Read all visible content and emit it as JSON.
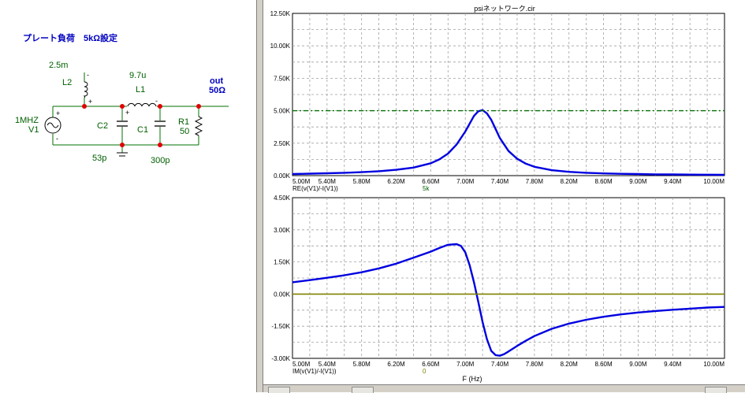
{
  "schematic": {
    "title": "プレート負荷　5kΩ設定",
    "source_name": "V1",
    "source_value": "1MHZ",
    "l2_name": "L2",
    "l2_value": "2.5m",
    "l1_name": "L1",
    "l1_value": "9.7u",
    "c2_name": "C2",
    "c2_value": "53p",
    "c1_name": "C1",
    "c1_value": "300p",
    "r1_name": "R1",
    "r1_value": "50",
    "out_label": "out",
    "out_value": "50Ω",
    "plus": "+",
    "minus": "-"
  },
  "plot": {
    "window_title": "psiネットワーク.cir",
    "xlabel": "F (Hz)"
  },
  "colors": {
    "trace": "#0000e0",
    "ref_dashed": "#007000",
    "zero_line": "#808000",
    "node": "#e00000",
    "wire": "#007000",
    "label_blue": "#0000c0",
    "label_green": "#006000"
  },
  "chart_data": [
    {
      "type": "line",
      "x_ticks": [
        "5.00M",
        "5.40M",
        "5.80M",
        "6.20M",
        "6.60M",
        "7.00M",
        "7.40M",
        "7.80M",
        "8.20M",
        "8.60M",
        "9.00M",
        "9.40M",
        "10.00M"
      ],
      "y_ticks": [
        "12.50K",
        "10.00K",
        "7.50K",
        "5.00K",
        "2.50K",
        "0.00K"
      ],
      "xlim": [
        5.0,
        10.0
      ],
      "ylim": [
        0,
        12.5
      ],
      "ylabel": "RE(v(V1)/-I(V1))",
      "ref_label": "5k",
      "ref_value": 5.0,
      "grid": true,
      "series": [
        {
          "x": [
            5.0,
            5.2,
            5.4,
            5.6,
            5.8,
            6.0,
            6.2,
            6.4,
            6.6,
            6.7,
            6.8,
            6.9,
            7.0,
            7.05,
            7.1,
            7.15,
            7.2,
            7.25,
            7.3,
            7.35,
            7.4,
            7.5,
            7.6,
            7.7,
            7.8,
            8.0,
            8.2,
            8.4,
            8.6,
            8.8,
            9.0,
            9.2,
            9.4,
            9.6,
            9.8,
            10.0
          ],
          "values": [
            0.12,
            0.15,
            0.18,
            0.22,
            0.27,
            0.34,
            0.45,
            0.62,
            0.95,
            1.25,
            1.7,
            2.4,
            3.4,
            4.0,
            4.6,
            4.95,
            5.05,
            4.8,
            4.3,
            3.6,
            2.9,
            1.9,
            1.3,
            0.92,
            0.68,
            0.42,
            0.29,
            0.22,
            0.17,
            0.14,
            0.12,
            0.1,
            0.09,
            0.08,
            0.07,
            0.06
          ]
        },
        {
          "x": [
            5.0,
            10.0
          ],
          "values": [
            5.0,
            5.0
          ]
        }
      ]
    },
    {
      "type": "line",
      "x_ticks": [
        "5.00M",
        "5.40M",
        "5.80M",
        "6.20M",
        "6.60M",
        "7.00M",
        "7.40M",
        "7.80M",
        "8.20M",
        "8.60M",
        "9.00M",
        "9.40M",
        "10.00M"
      ],
      "y_ticks": [
        "4.50K",
        "3.00K",
        "1.50K",
        "0.00K",
        "-1.50K",
        "-3.00K"
      ],
      "xlim": [
        5.0,
        10.0
      ],
      "ylim": [
        -3.0,
        4.5
      ],
      "ylabel": "IM(v(V1)/-I(V1))",
      "ref_label": "0",
      "ref_value": 0.0,
      "grid": true,
      "series": [
        {
          "x": [
            5.0,
            5.2,
            5.4,
            5.6,
            5.8,
            6.0,
            6.2,
            6.4,
            6.6,
            6.7,
            6.8,
            6.9,
            6.95,
            7.0,
            7.05,
            7.1,
            7.15,
            7.2,
            7.25,
            7.3,
            7.35,
            7.4,
            7.45,
            7.5,
            7.6,
            7.7,
            7.8,
            8.0,
            8.2,
            8.4,
            8.6,
            8.8,
            9.0,
            9.2,
            9.4,
            9.6,
            9.8,
            10.0
          ],
          "values": [
            0.55,
            0.65,
            0.76,
            0.88,
            1.02,
            1.2,
            1.42,
            1.7,
            1.98,
            2.15,
            2.3,
            2.33,
            2.25,
            1.95,
            1.35,
            0.55,
            -0.35,
            -1.3,
            -2.1,
            -2.65,
            -2.85,
            -2.88,
            -2.8,
            -2.68,
            -2.42,
            -2.18,
            -1.96,
            -1.62,
            -1.38,
            -1.2,
            -1.06,
            -0.95,
            -0.86,
            -0.79,
            -0.73,
            -0.68,
            -0.63,
            -0.6
          ]
        },
        {
          "x": [
            5.0,
            10.0
          ],
          "values": [
            0.0,
            0.0
          ]
        }
      ]
    }
  ]
}
